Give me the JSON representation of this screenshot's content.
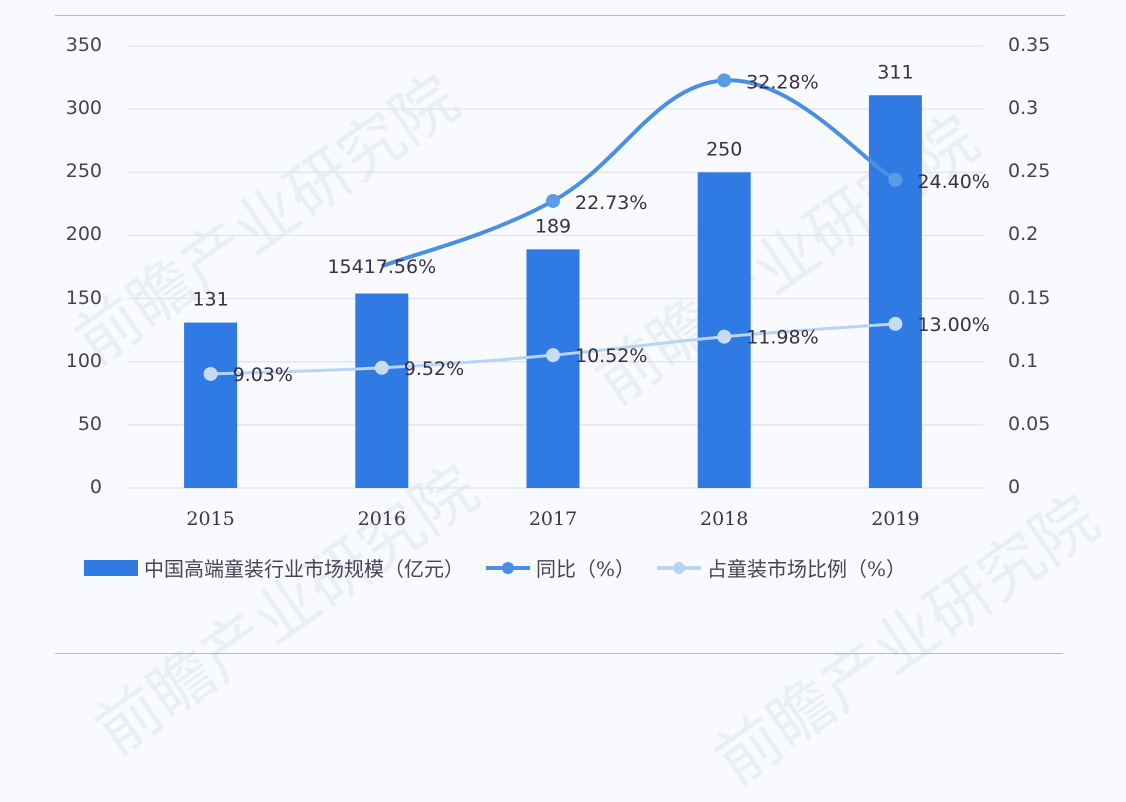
{
  "chart_data": {
    "type": "bar",
    "title": "",
    "categories": [
      "2015",
      "2016",
      "2017",
      "2018",
      "2019"
    ],
    "series": [
      {
        "name": "中国高端童装行业市场规模（亿元）",
        "type": "bar",
        "axis": "left",
        "values": [
          131,
          154,
          189,
          250,
          311
        ],
        "labels": [
          "131",
          "154",
          "189",
          "250",
          "311"
        ],
        "color": "#2f7be3"
      },
      {
        "name": "同比（%）",
        "type": "line",
        "axis": "right",
        "values": [
          null,
          0.1756,
          0.2273,
          0.3228,
          0.244
        ],
        "labels": [
          "",
          "17.56%",
          "22.73%",
          "32.28%",
          "24.40%"
        ],
        "color": "#4a90e2"
      },
      {
        "name": "占童装市场比例（%）",
        "type": "line",
        "axis": "right",
        "values": [
          0.0903,
          0.0952,
          0.1052,
          0.1198,
          0.13
        ],
        "labels": [
          "9.03%",
          "9.52%",
          "10.52%",
          "11.98%",
          "13.00%"
        ],
        "color": "#b8d4f4"
      }
    ],
    "left_axis": {
      "ticks": [
        "0",
        "50",
        "100",
        "150",
        "200",
        "250",
        "300",
        "350"
      ],
      "ylim": [
        0,
        350
      ]
    },
    "right_axis": {
      "ticks": [
        "0",
        "0.05",
        "0.1",
        "0.15",
        "0.2",
        "0.25",
        "0.3",
        "0.35"
      ],
      "ylim": [
        0,
        0.35
      ]
    },
    "xlabel": "",
    "ylabel": "",
    "grid": true,
    "legend_position": "bottom",
    "annotations": {
      "overlapping_2016_label": "15417.56%"
    }
  },
  "legend": {
    "bar_label": "中国高端童装行业市场规模（亿元）",
    "yoy_label": "同比（%）",
    "share_label": "占童装市场比例（%）"
  },
  "watermark": "前瞻产业研究院"
}
